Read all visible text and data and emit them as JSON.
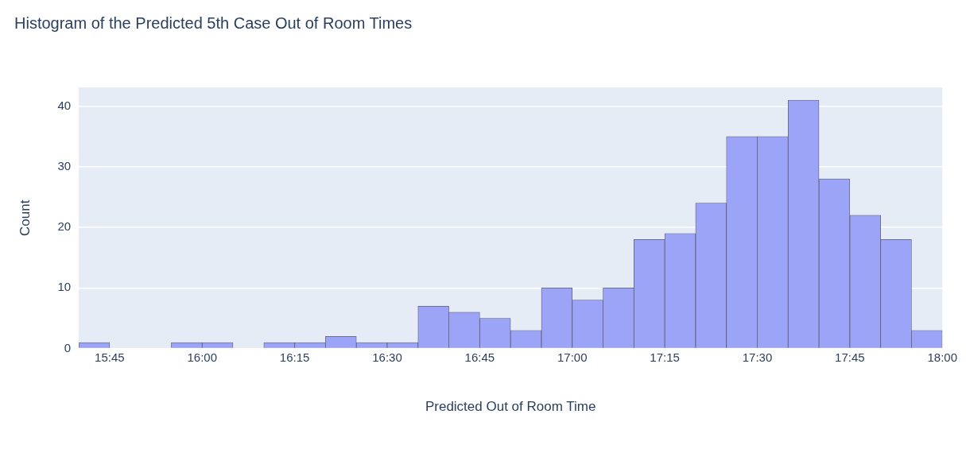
{
  "chart_data": {
    "type": "histogram",
    "title": "Histogram of the Predicted 5th Case Out of Room Times",
    "xlabel": "Predicted Out of Room Time",
    "ylabel": "Count",
    "bins": [
      15.6667,
      15.75,
      15.8333,
      15.9167,
      16,
      16.0833,
      16.1667,
      16.25,
      16.3333,
      16.4167,
      16.5,
      16.5833,
      16.6667,
      16.75,
      16.8333,
      16.9167,
      17,
      17.0833,
      17.1667,
      17.25,
      17.3333,
      17.4167,
      17.5,
      17.5833,
      17.6667,
      17.75,
      17.8333,
      17.9167,
      18
    ],
    "values": [
      1,
      0,
      0,
      1,
      1,
      0,
      1,
      1,
      2,
      1,
      1,
      7,
      6,
      5,
      3,
      10,
      8,
      10,
      18,
      19,
      24,
      35,
      35,
      41,
      28,
      22,
      18,
      3
    ],
    "color": "#9ba4f7",
    "xlim": [
      15.6667,
      18
    ],
    "xticks": [
      {
        "value": 15.75,
        "label": "15:45"
      },
      {
        "value": 16,
        "label": "16:00"
      },
      {
        "value": 16.25,
        "label": "16:15"
      },
      {
        "value": 16.5,
        "label": "16:30"
      },
      {
        "value": 16.75,
        "label": "16:45"
      },
      {
        "value": 17,
        "label": "17:00"
      },
      {
        "value": 17.25,
        "label": "17:15"
      },
      {
        "value": 17.5,
        "label": "17:30"
      },
      {
        "value": 17.75,
        "label": "17:45"
      },
      {
        "value": 18,
        "label": "18:00"
      }
    ],
    "ylim": [
      0,
      43.1
    ],
    "yticks": [
      0,
      10,
      20,
      30,
      40
    ],
    "grid": "y"
  }
}
